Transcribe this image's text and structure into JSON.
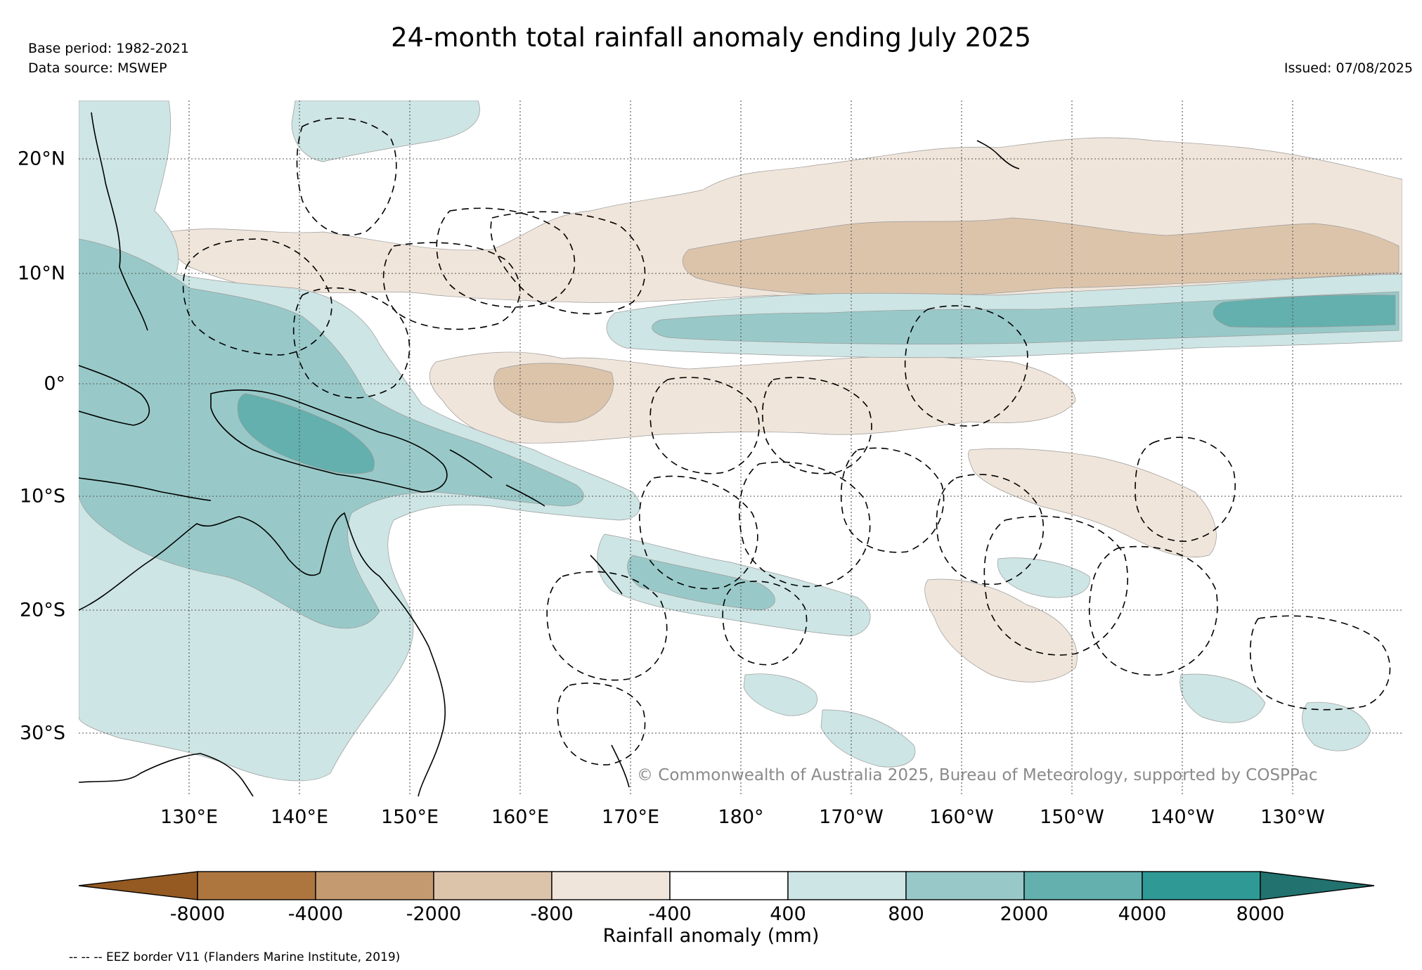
{
  "header": {
    "title": "24-month total rainfall anomaly ending July 2025",
    "base_period": "Base period: 1982-2021",
    "data_source": "Data source: MSWEP",
    "issued": "Issued: 07/08/2025"
  },
  "map": {
    "region": "Western and central tropical Pacific, 120°E–110°W, 35°S–25°N",
    "lon_labels": [
      "130°E",
      "140°E",
      "150°E",
      "160°E",
      "170°E",
      "180°",
      "170°W",
      "160°W",
      "150°W",
      "140°W",
      "130°W"
    ],
    "lat_labels": [
      "20°N",
      "10°N",
      "0°",
      "10°S",
      "20°S",
      "30°S"
    ],
    "copyright": "© Commonwealth of Australia 2025, Bureau of Meteorology, supported by COSPPac",
    "features": [
      "land-coastlines",
      "eez-borders",
      "gridlines"
    ]
  },
  "legend": {
    "title": "Rainfall anomaly (mm)",
    "ticks": [
      "-8000",
      "-4000",
      "-2000",
      "-800",
      "-400",
      "400",
      "800",
      "2000",
      "4000",
      "8000"
    ],
    "colors": [
      "#945a22",
      "#ad763e",
      "#c49a70",
      "#dcc4ab",
      "#f0e5da",
      "#ffffff",
      "#cde5e4",
      "#98c9c8",
      "#63b0ae",
      "#2f9995",
      "#22726f"
    ],
    "eez_note": "-- -- -- EEZ border V11 (Flanders Marine Institute, 2019)"
  }
}
